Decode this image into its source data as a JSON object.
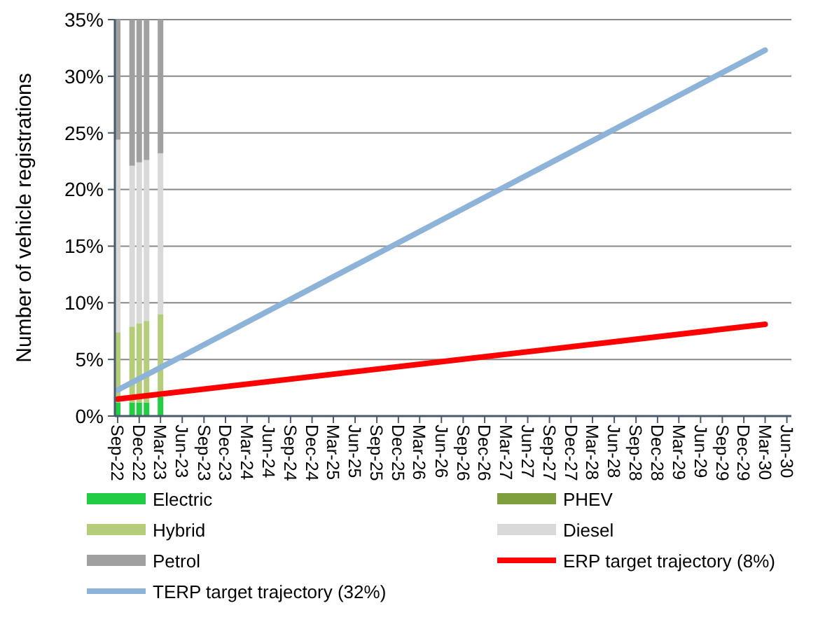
{
  "chart_data": {
    "type": "bar",
    "stacked": true,
    "ylabel": "Number of vehicle registrations",
    "x": [
      "2022-09",
      "2022-11",
      "2022-12",
      "2023-01",
      "2023-03"
    ],
    "xlim": [
      "2022-08-20",
      "2030-06-20"
    ],
    "xticks": [
      {
        "value": "2022-09",
        "label": "Sep-22"
      },
      {
        "value": "2022-12",
        "label": "Dec-22"
      },
      {
        "value": "2023-03",
        "label": "Mar-23"
      },
      {
        "value": "2023-06",
        "label": "Jun-23"
      },
      {
        "value": "2023-09",
        "label": "Sep-23"
      },
      {
        "value": "2023-12",
        "label": "Dec-23"
      },
      {
        "value": "2024-03",
        "label": "Mar-24"
      },
      {
        "value": "2024-06",
        "label": "Jun-24"
      },
      {
        "value": "2024-09",
        "label": "Sep-24"
      },
      {
        "value": "2024-12",
        "label": "Dec-24"
      },
      {
        "value": "2025-03",
        "label": "Mar-25"
      },
      {
        "value": "2025-06",
        "label": "Jun-25"
      },
      {
        "value": "2025-09",
        "label": "Sep-25"
      },
      {
        "value": "2025-12",
        "label": "Dec-25"
      },
      {
        "value": "2026-03",
        "label": "Mar-26"
      },
      {
        "value": "2026-06",
        "label": "Jun-26"
      },
      {
        "value": "2026-09",
        "label": "Sep-26"
      },
      {
        "value": "2026-12",
        "label": "Dec-26"
      },
      {
        "value": "2027-03",
        "label": "Mar-27"
      },
      {
        "value": "2027-06",
        "label": "Jun-27"
      },
      {
        "value": "2027-09",
        "label": "Sep-27"
      },
      {
        "value": "2027-12",
        "label": "Dec-27"
      },
      {
        "value": "2028-03",
        "label": "Mar-28"
      },
      {
        "value": "2028-06",
        "label": "Jun-28"
      },
      {
        "value": "2028-09",
        "label": "Sep-28"
      },
      {
        "value": "2028-12",
        "label": "Dec-28"
      },
      {
        "value": "2029-03",
        "label": "Mar-29"
      },
      {
        "value": "2029-06",
        "label": "Jun-29"
      },
      {
        "value": "2029-09",
        "label": "Sep-29"
      },
      {
        "value": "2029-12",
        "label": "Dec-29"
      },
      {
        "value": "2030-03",
        "label": "Mar-30"
      },
      {
        "value": "2030-06",
        "label": "Jun-30"
      }
    ],
    "ylim": [
      0,
      35
    ],
    "yticks": [
      {
        "value": 0,
        "label": "0%"
      },
      {
        "value": 5,
        "label": "5%"
      },
      {
        "value": 10,
        "label": "10%"
      },
      {
        "value": 15,
        "label": "15%"
      },
      {
        "value": 20,
        "label": "20%"
      },
      {
        "value": 25,
        "label": "25%"
      },
      {
        "value": 30,
        "label": "30%"
      },
      {
        "value": 35,
        "label": "35%"
      }
    ],
    "grid": "y",
    "legend": "bottom",
    "series": [
      {
        "name": "Electric",
        "color": "#22cc44",
        "values": [
          1.2,
          1.2,
          1.2,
          1.2,
          1.7
        ]
      },
      {
        "name": "PHEV",
        "color": "#7f9f3f",
        "values": [
          0,
          0,
          0,
          0,
          0
        ]
      },
      {
        "name": "Hybrid",
        "color": "#b5cc7a",
        "values": [
          6.2,
          6.7,
          7.0,
          7.2,
          7.3
        ]
      },
      {
        "name": "Diesel",
        "color": "#d9d9d9",
        "values": [
          17.0,
          14.2,
          14.2,
          14.2,
          14.2
        ]
      },
      {
        "name": "Petrol",
        "color": "#a0a0a0",
        "values": [
          10.6,
          12.9,
          12.6,
          12.4,
          11.8
        ]
      },
      {
        "name": "ERP target trajectory (8%)",
        "type": "line",
        "color": "#ff0000",
        "x": [
          "2022-09",
          "2030-03"
        ],
        "values": [
          1.5,
          8.1
        ]
      },
      {
        "name": "TERP target trajectory (32%)",
        "type": "line",
        "color": "#8db3d9",
        "x": [
          "2022-09",
          "2030-03"
        ],
        "values": [
          2.3,
          32.3
        ]
      }
    ]
  }
}
